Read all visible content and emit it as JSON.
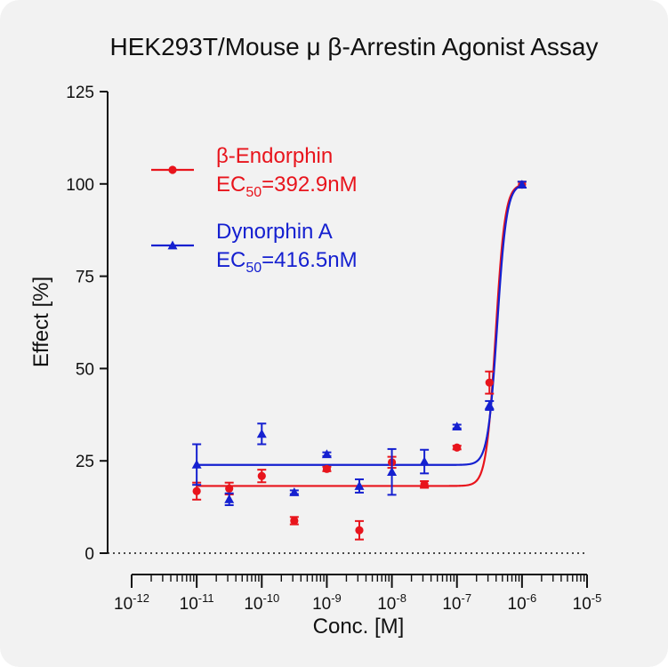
{
  "chart_data": {
    "type": "scatter",
    "title": "HEK293T/Mouse μ β-Arrestin Agonist Assay",
    "xlabel": "Conc. [M]",
    "ylabel": "Effect  [%]",
    "x_scale": "log10",
    "x_range_exponent": [
      -12,
      -5
    ],
    "x_tick_base": "10",
    "x_tick_exponents": [
      "-12",
      "-11",
      "-10",
      "-9",
      "-8",
      "-7",
      "-6",
      "-5"
    ],
    "ylim": [
      0,
      125
    ],
    "y_ticks": [
      "0",
      "25",
      "50",
      "75",
      "100",
      "125"
    ],
    "baseline": {
      "y": 0,
      "style": "dotted"
    },
    "legend_position": "top-left",
    "series": [
      {
        "name": "β-Endorphin",
        "ec50_prefix": "EC",
        "ec50_subscript": "50",
        "ec50_value": "=392.9nM",
        "color": "#e8141c",
        "marker": "circle",
        "fit": {
          "bottom": 18.2,
          "top": 100,
          "log_ec50": -6.4058,
          "hill": 6.0
        },
        "points": [
          {
            "x": 1e-11,
            "y": 16.8,
            "err": 2.3
          },
          {
            "x": 3.16e-11,
            "y": 17.5,
            "err": 1.6
          },
          {
            "x": 1e-10,
            "y": 20.9,
            "err": 1.7
          },
          {
            "x": 3.16e-10,
            "y": 8.8,
            "err": 1.0
          },
          {
            "x": 1e-09,
            "y": 22.8,
            "err": 0.6
          },
          {
            "x": 3.16e-09,
            "y": 6.2,
            "err": 2.5
          },
          {
            "x": 1e-08,
            "y": 24.6,
            "err": 1.5
          },
          {
            "x": 3.16e-08,
            "y": 18.6,
            "err": 0.9
          },
          {
            "x": 1e-07,
            "y": 28.6,
            "err": 0.5
          },
          {
            "x": 3.16e-07,
            "y": 46.2,
            "err": 3.0
          },
          {
            "x": 1e-06,
            "y": 99.8,
            "err": 0.8
          }
        ]
      },
      {
        "name": "Dynorphin A",
        "ec50_prefix": "EC",
        "ec50_subscript": "50",
        "ec50_value": "=416.5nM",
        "color": "#1520d0",
        "marker": "triangle",
        "fit": {
          "bottom": 23.9,
          "top": 100,
          "log_ec50": -6.3804,
          "hill": 6.0
        },
        "points": [
          {
            "x": 1e-11,
            "y": 24.0,
            "err": 5.5
          },
          {
            "x": 3.16e-11,
            "y": 14.6,
            "err": 1.6
          },
          {
            "x": 1e-10,
            "y": 32.3,
            "err": 2.8
          },
          {
            "x": 3.16e-10,
            "y": 16.5,
            "err": 0.5
          },
          {
            "x": 1e-09,
            "y": 26.8,
            "err": 0.5
          },
          {
            "x": 3.16e-09,
            "y": 18.2,
            "err": 1.8
          },
          {
            "x": 1e-08,
            "y": 22.0,
            "err": 6.2
          },
          {
            "x": 3.16e-08,
            "y": 24.8,
            "err": 3.2
          },
          {
            "x": 1e-07,
            "y": 34.3,
            "err": 0.5
          },
          {
            "x": 3.16e-07,
            "y": 40.0,
            "err": 1.2
          },
          {
            "x": 1e-06,
            "y": 99.8,
            "err": 0.8
          }
        ]
      }
    ]
  }
}
